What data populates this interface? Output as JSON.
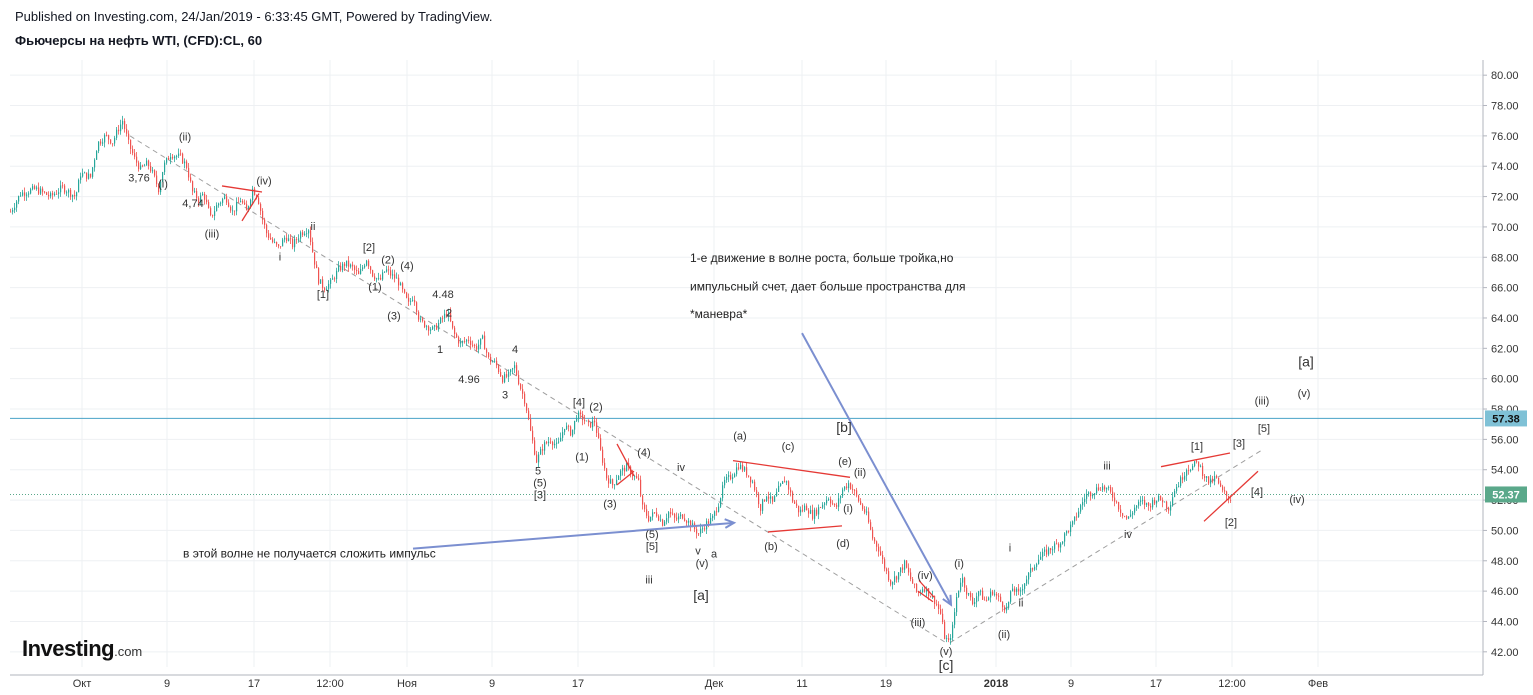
{
  "header": {
    "published": "Published on Investing.com, 24/Jan/2019 - 6:33:45 GMT, Powered by TradingView.",
    "symbol": "Фьючерсы на нефть WTI, (CFD):CL, 60"
  },
  "logo": {
    "name": "Investing",
    "suffix": ".com"
  },
  "colors": {
    "up": "#26a69a",
    "down": "#ef5350",
    "grid": "#eef0f3",
    "axis": "#b2b5be",
    "annotation_line": "#7b8fd0",
    "level_line": "#4aa3c7",
    "price_tag": "#5aa88a",
    "level_tag": "#7fc1d6",
    "wedge": "#e53935",
    "dashed": "#9e9e9e",
    "label": "#333333"
  },
  "chart_data": {
    "type": "candlestick",
    "symbol": "CL",
    "interval": "60",
    "y_axis": {
      "min": 41,
      "max": 81,
      "ticks": [
        42,
        44,
        46,
        48,
        50,
        52,
        54,
        56,
        58,
        60,
        62,
        64,
        66,
        68,
        70,
        72,
        74,
        76,
        78,
        80
      ],
      "tick_labels": [
        "42.00",
        "44.00",
        "46.00",
        "48.00",
        "50.00",
        "52.00",
        "54.00",
        "56.00",
        "58.00",
        "60.00",
        "62.00",
        "64.00",
        "66.00",
        "68.00",
        "70.00",
        "72.00",
        "74.00",
        "76.00",
        "78.00",
        "80.00"
      ],
      "side": "right"
    },
    "x_axis": {
      "range": [
        0,
        1480
      ],
      "ticks": [
        {
          "x": 82,
          "label": "Окт",
          "bold": false
        },
        {
          "x": 167,
          "label": "9",
          "bold": false
        },
        {
          "x": 254,
          "label": "17",
          "bold": false
        },
        {
          "x": 330,
          "label": "12:00",
          "bold": false
        },
        {
          "x": 407,
          "label": "Ноя",
          "bold": false
        },
        {
          "x": 492,
          "label": "9",
          "bold": false
        },
        {
          "x": 578,
          "label": "17",
          "bold": false
        },
        {
          "x": 714,
          "label": "Дек",
          "bold": false
        },
        {
          "x": 802,
          "label": "11",
          "bold": false
        },
        {
          "x": 886,
          "label": "19",
          "bold": false
        },
        {
          "x": 996,
          "label": "2018",
          "bold": true
        },
        {
          "x": 1071,
          "label": "9",
          "bold": false
        },
        {
          "x": 1156,
          "label": "17",
          "bold": false
        },
        {
          "x": 1232,
          "label": "12:00",
          "bold": false
        },
        {
          "x": 1318,
          "label": "Фев",
          "bold": false
        }
      ]
    },
    "price_path": [
      [
        10,
        71.0
      ],
      [
        20,
        72.2
      ],
      [
        35,
        72.5
      ],
      [
        50,
        72.0
      ],
      [
        62,
        72.6
      ],
      [
        75,
        72.0
      ],
      [
        80,
        73.5
      ],
      [
        90,
        73.3
      ],
      [
        97,
        75.5
      ],
      [
        105,
        76.0
      ],
      [
        112,
        75.6
      ],
      [
        118,
        76.5
      ],
      [
        122,
        77.0
      ],
      [
        128,
        75.5
      ],
      [
        134,
        74.5
      ],
      [
        140,
        73.8
      ],
      [
        147,
        74.2
      ],
      [
        153,
        73.4
      ],
      [
        158,
        72.5
      ],
      [
        163,
        74.0
      ],
      [
        170,
        74.8
      ],
      [
        180,
        74.6
      ],
      [
        186,
        74.0
      ],
      [
        192,
        72.3
      ],
      [
        198,
        71.8
      ],
      [
        203,
        72.2
      ],
      [
        210,
        70.6
      ],
      [
        217,
        71.5
      ],
      [
        225,
        72.0
      ],
      [
        232,
        71.0
      ],
      [
        240,
        71.8
      ],
      [
        246,
        71.0
      ],
      [
        252,
        72.5
      ],
      [
        257,
        72.0
      ],
      [
        262,
        70.5
      ],
      [
        266,
        69.6
      ],
      [
        272,
        69.0
      ],
      [
        278,
        68.6
      ],
      [
        285,
        69.4
      ],
      [
        292,
        68.8
      ],
      [
        300,
        69.6
      ],
      [
        308,
        69.9
      ],
      [
        313,
        68.0
      ],
      [
        318,
        66.5
      ],
      [
        323,
        66.0
      ],
      [
        330,
        66.3
      ],
      [
        338,
        67.2
      ],
      [
        345,
        67.6
      ],
      [
        352,
        67.3
      ],
      [
        358,
        66.8
      ],
      [
        366,
        67.9
      ],
      [
        372,
        66.9
      ],
      [
        379,
        66.4
      ],
      [
        385,
        67.2
      ],
      [
        391,
        66.8
      ],
      [
        397,
        66.5
      ],
      [
        403,
        65.6
      ],
      [
        408,
        64.9
      ],
      [
        413,
        65.5
      ],
      [
        419,
        63.8
      ],
      [
        426,
        63.5
      ],
      [
        433,
        63.2
      ],
      [
        440,
        63.8
      ],
      [
        447,
        64.4
      ],
      [
        453,
        63.0
      ],
      [
        460,
        62.3
      ],
      [
        468,
        62.6
      ],
      [
        475,
        62.0
      ],
      [
        482,
        62.6
      ],
      [
        488,
        61.3
      ],
      [
        495,
        61.0
      ],
      [
        502,
        60.0
      ],
      [
        508,
        60.2
      ],
      [
        514,
        60.8
      ],
      [
        519,
        59.6
      ],
      [
        525,
        58.4
      ],
      [
        530,
        56.5
      ],
      [
        536,
        54.6
      ],
      [
        543,
        55.6
      ],
      [
        550,
        56.0
      ],
      [
        557,
        55.5
      ],
      [
        564,
        56.9
      ],
      [
        571,
        56.4
      ],
      [
        576,
        57.6
      ],
      [
        582,
        57.4
      ],
      [
        588,
        56.9
      ],
      [
        594,
        57.2
      ],
      [
        600,
        55.2
      ],
      [
        606,
        53.5
      ],
      [
        612,
        53.0
      ],
      [
        619,
        53.8
      ],
      [
        626,
        54.2
      ],
      [
        633,
        53.6
      ],
      [
        638,
        53.2
      ],
      [
        642,
        51.5
      ],
      [
        648,
        50.8
      ],
      [
        655,
        51.2
      ],
      [
        662,
        50.5
      ],
      [
        668,
        51.2
      ],
      [
        675,
        50.7
      ],
      [
        682,
        51.0
      ],
      [
        690,
        50.4
      ],
      [
        698,
        49.8
      ],
      [
        705,
        50.4
      ],
      [
        712,
        50.8
      ],
      [
        718,
        51.8
      ],
      [
        724,
        53.2
      ],
      [
        731,
        53.6
      ],
      [
        738,
        54.3
      ],
      [
        745,
        53.9
      ],
      [
        752,
        53.2
      ],
      [
        760,
        51.5
      ],
      [
        766,
        52.4
      ],
      [
        772,
        51.8
      ],
      [
        778,
        52.7
      ],
      [
        785,
        53.4
      ],
      [
        792,
        52.0
      ],
      [
        799,
        51.2
      ],
      [
        805,
        51.6
      ],
      [
        812,
        51.0
      ],
      [
        820,
        51.6
      ],
      [
        828,
        52.2
      ],
      [
        835,
        51.4
      ],
      [
        842,
        52.7
      ],
      [
        848,
        53.1
      ],
      [
        854,
        52.5
      ],
      [
        860,
        51.7
      ],
      [
        866,
        51.0
      ],
      [
        872,
        49.5
      ],
      [
        878,
        48.8
      ],
      [
        884,
        47.6
      ],
      [
        890,
        46.6
      ],
      [
        896,
        47.0
      ],
      [
        904,
        47.8
      ],
      [
        910,
        46.8
      ],
      [
        917,
        45.8
      ],
      [
        923,
        46.3
      ],
      [
        929,
        45.8
      ],
      [
        935,
        45.3
      ],
      [
        940,
        44.5
      ],
      [
        944,
        43.0
      ],
      [
        948,
        42.6
      ],
      [
        952,
        43.6
      ],
      [
        956,
        45.6
      ],
      [
        961,
        47.0
      ],
      [
        966,
        46.0
      ],
      [
        972,
        45.2
      ],
      [
        978,
        46.0
      ],
      [
        985,
        45.3
      ],
      [
        992,
        46.0
      ],
      [
        999,
        45.4
      ],
      [
        1006,
        44.8
      ],
      [
        1012,
        46.2
      ],
      [
        1018,
        45.8
      ],
      [
        1024,
        46.6
      ],
      [
        1030,
        47.3
      ],
      [
        1036,
        48.0
      ],
      [
        1044,
        48.5
      ],
      [
        1052,
        48.9
      ],
      [
        1060,
        49.2
      ],
      [
        1066,
        49.9
      ],
      [
        1072,
        50.4
      ],
      [
        1078,
        51.3
      ],
      [
        1085,
        52.3
      ],
      [
        1093,
        52.6
      ],
      [
        1100,
        52.9
      ],
      [
        1107,
        52.7
      ],
      [
        1114,
        52.1
      ],
      [
        1120,
        51.3
      ],
      [
        1127,
        50.7
      ],
      [
        1134,
        51.5
      ],
      [
        1141,
        51.9
      ],
      [
        1148,
        51.6
      ],
      [
        1155,
        52.1
      ],
      [
        1162,
        52.0
      ],
      [
        1168,
        51.5
      ],
      [
        1174,
        52.7
      ],
      [
        1180,
        53.3
      ],
      [
        1186,
        54.1
      ],
      [
        1192,
        54.2
      ],
      [
        1197,
        54.5
      ],
      [
        1203,
        53.7
      ],
      [
        1209,
        53.1
      ],
      [
        1215,
        53.5
      ],
      [
        1221,
        52.6
      ],
      [
        1227,
        52.2
      ],
      [
        1230,
        52.1
      ]
    ],
    "horizontal_levels": [
      {
        "price": 57.38,
        "label": "57.38",
        "style": "solid"
      },
      {
        "price": 52.37,
        "label": "52.37",
        "style": "dotted"
      }
    ],
    "annotations": [
      {
        "x": 163,
        "price": 72.6,
        "text": "(i)"
      },
      {
        "x": 185,
        "price": 75.7,
        "text": "(ii)"
      },
      {
        "x": 212,
        "price": 69.3,
        "text": "(iii)"
      },
      {
        "x": 264,
        "price": 72.8,
        "text": "(iv)"
      },
      {
        "x": 139,
        "price": 73.0,
        "text": "3,76"
      },
      {
        "x": 193,
        "price": 71.3,
        "text": "4,74"
      },
      {
        "x": 280,
        "price": 67.8,
        "text": "i"
      },
      {
        "x": 313,
        "price": 69.8,
        "text": "ii"
      },
      {
        "x": 369,
        "price": 68.4,
        "text": "[2]"
      },
      {
        "x": 323,
        "price": 65.3,
        "text": "[1]"
      },
      {
        "x": 388,
        "price": 67.6,
        "text": "(2)"
      },
      {
        "x": 375,
        "price": 65.8,
        "text": "(1)"
      },
      {
        "x": 407,
        "price": 67.2,
        "text": "(4)"
      },
      {
        "x": 394,
        "price": 63.9,
        "text": "(3)"
      },
      {
        "x": 443,
        "price": 65.3,
        "text": "4.48"
      },
      {
        "x": 449,
        "price": 64.1,
        "text": "2"
      },
      {
        "x": 440,
        "price": 61.7,
        "text": "1"
      },
      {
        "x": 469,
        "price": 59.7,
        "text": "4.96"
      },
      {
        "x": 515,
        "price": 61.7,
        "text": "4"
      },
      {
        "x": 505,
        "price": 58.7,
        "text": "3"
      },
      {
        "x": 579,
        "price": 58.2,
        "text": "[4]"
      },
      {
        "x": 596,
        "price": 57.9,
        "text": "(2)"
      },
      {
        "x": 582,
        "price": 54.6,
        "text": "(1)"
      },
      {
        "x": 644,
        "price": 54.9,
        "text": "(4)"
      },
      {
        "x": 610,
        "price": 51.5,
        "text": "(3)"
      },
      {
        "x": 538,
        "price": 53.7,
        "text": "5"
      },
      {
        "x": 540,
        "price": 52.9,
        "text": "(5)"
      },
      {
        "x": 540,
        "price": 52.1,
        "text": "[3]"
      },
      {
        "x": 652,
        "price": 49.5,
        "text": "(5)"
      },
      {
        "x": 652,
        "price": 48.7,
        "text": "[5]"
      },
      {
        "x": 649,
        "price": 46.5,
        "text": "iii"
      },
      {
        "x": 681,
        "price": 53.9,
        "text": "iv"
      },
      {
        "x": 698,
        "price": 48.4,
        "text": "v"
      },
      {
        "x": 702,
        "price": 47.6,
        "text": "(v)"
      },
      {
        "x": 714,
        "price": 48.2,
        "text": "a"
      },
      {
        "x": 701,
        "price": 45.4,
        "text": "[a]"
      },
      {
        "x": 740,
        "price": 56.0,
        "text": "(a)"
      },
      {
        "x": 771,
        "price": 48.7,
        "text": "(b)"
      },
      {
        "x": 788,
        "price": 55.3,
        "text": "(c)"
      },
      {
        "x": 843,
        "price": 48.9,
        "text": "(d)"
      },
      {
        "x": 845,
        "price": 54.3,
        "text": "(e)"
      },
      {
        "x": 860,
        "price": 53.6,
        "text": "(ii)"
      },
      {
        "x": 848,
        "price": 51.2,
        "text": "(i)"
      },
      {
        "x": 844,
        "price": 56.5,
        "text": "[b]"
      },
      {
        "x": 925,
        "price": 46.8,
        "text": "(iv)"
      },
      {
        "x": 918,
        "price": 43.7,
        "text": "(iii)"
      },
      {
        "x": 959,
        "price": 47.6,
        "text": "(i)"
      },
      {
        "x": 946,
        "price": 41.8,
        "text": "(v)"
      },
      {
        "x": 946,
        "price": 40.8,
        "text": "[c]"
      },
      {
        "x": 1010,
        "price": 48.6,
        "text": "i"
      },
      {
        "x": 1021,
        "price": 45.0,
        "text": "ii"
      },
      {
        "x": 1004,
        "price": 42.9,
        "text": "(ii)"
      },
      {
        "x": 1107,
        "price": 54.0,
        "text": "iii"
      },
      {
        "x": 1128,
        "price": 49.5,
        "text": "iv"
      },
      {
        "x": 1197,
        "price": 55.3,
        "text": "[1]"
      },
      {
        "x": 1239,
        "price": 55.5,
        "text": "[3]"
      },
      {
        "x": 1264,
        "price": 56.5,
        "text": "[5]"
      },
      {
        "x": 1257,
        "price": 52.3,
        "text": "[4]"
      },
      {
        "x": 1231,
        "price": 50.3,
        "text": "[2]"
      },
      {
        "x": 1262,
        "price": 58.3,
        "text": "(iii)"
      },
      {
        "x": 1304,
        "price": 58.8,
        "text": "(v)"
      },
      {
        "x": 1297,
        "price": 51.8,
        "text": "(iv)"
      },
      {
        "x": 1306,
        "price": 60.8,
        "text": "[a]"
      }
    ],
    "notes": [
      {
        "x": 690,
        "price": 67.7,
        "text": "1-е движение в волне роста, больше тройка,но"
      },
      {
        "x": 690,
        "price": 65.8,
        "text": "импульсный счет, дает больше пространства для"
      },
      {
        "x": 690,
        "price": 64.0,
        "text": "*маневра*"
      },
      {
        "x": 183,
        "price": 48.2,
        "text": "в этой волне не получается сложить импульс"
      }
    ],
    "arrows": [
      {
        "from": [
          413,
          48.8
        ],
        "to": [
          734,
          50.5
        ]
      },
      {
        "from": [
          802,
          63.0
        ],
        "to": [
          951,
          45.1
        ]
      }
    ],
    "dashed_lines": [
      {
        "from": [
          130,
          76.0
        ],
        "to": [
          946,
          42.6
        ]
      },
      {
        "from": [
          950,
          42.6
        ],
        "to": [
          1262,
          55.3
        ]
      }
    ],
    "red_lines": [
      {
        "from": [
          222,
          72.7
        ],
        "to": [
          262,
          72.3
        ]
      },
      {
        "from": [
          242,
          70.4
        ],
        "to": [
          259,
          72.2
        ]
      },
      {
        "from": [
          617,
          55.7
        ],
        "to": [
          634,
          53.6
        ]
      },
      {
        "from": [
          617,
          53.0
        ],
        "to": [
          634,
          53.9
        ]
      },
      {
        "from": [
          733,
          54.6
        ],
        "to": [
          850,
          53.5
        ]
      },
      {
        "from": [
          768,
          49.9
        ],
        "to": [
          842,
          50.3
        ]
      },
      {
        "from": [
          918,
          46.0
        ],
        "to": [
          933,
          45.3
        ]
      },
      {
        "from": [
          919,
          46.7
        ],
        "to": [
          934,
          45.6
        ]
      },
      {
        "from": [
          1161,
          54.2
        ],
        "to": [
          1230,
          55.1
        ]
      },
      {
        "from": [
          1204,
          50.6
        ],
        "to": [
          1258,
          53.9
        ]
      }
    ]
  }
}
